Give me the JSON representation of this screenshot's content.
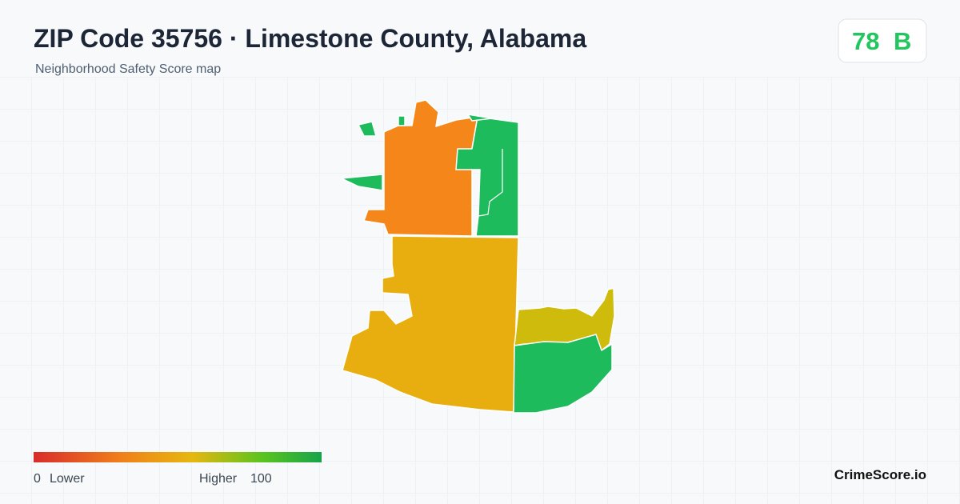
{
  "header": {
    "title": "ZIP Code 35756 · Limestone County, Alabama",
    "subtitle": "Neighborhood Safety Score map"
  },
  "score": {
    "value": 78,
    "grade": "B"
  },
  "legend": {
    "min": 0,
    "min_label": "Lower",
    "max_label": "Higher",
    "max": 100
  },
  "brand": "CrimeScore.io"
}
